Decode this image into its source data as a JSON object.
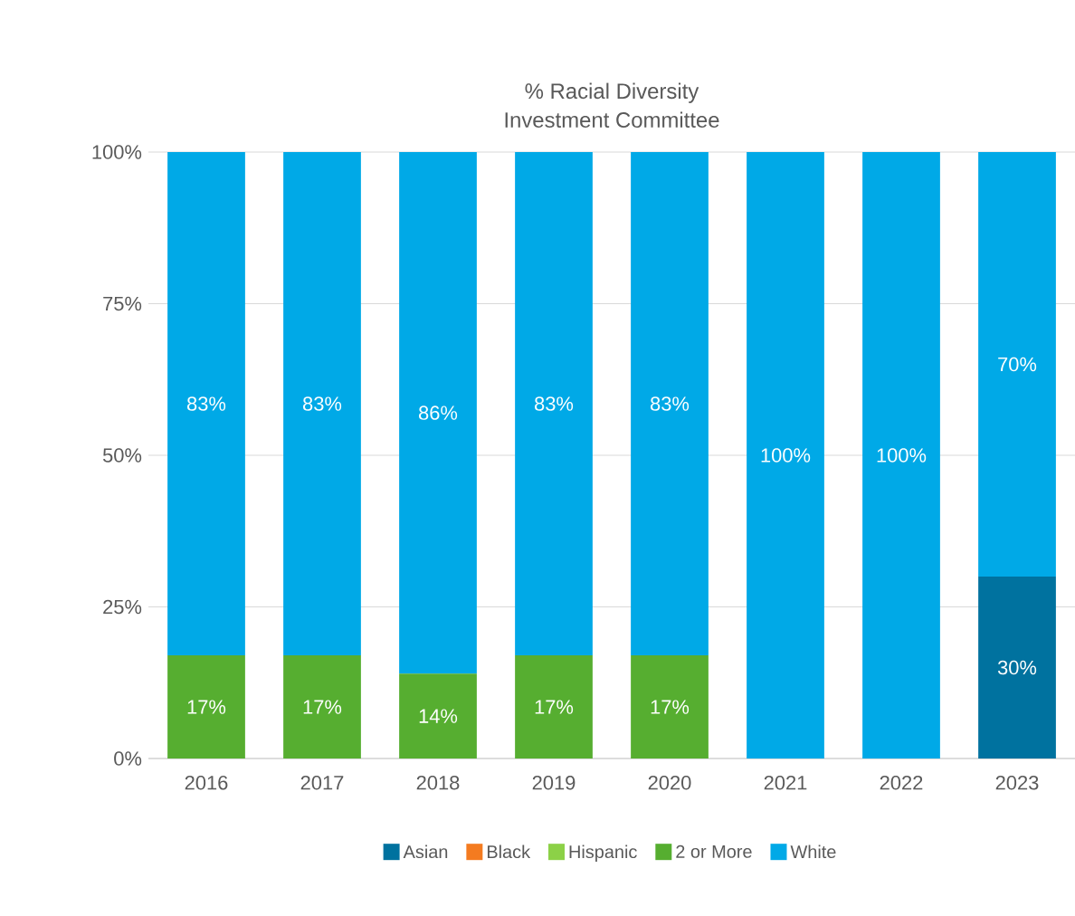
{
  "chart_data": {
    "type": "bar",
    "title": "% Racial Diversity",
    "subtitle": "Investment Committee",
    "stacked": true,
    "grid": "y",
    "legend": "bottom",
    "categories": [
      "2016",
      "2017",
      "2018",
      "2019",
      "2020",
      "2021",
      "2022",
      "2023"
    ],
    "ylim": [
      0,
      100
    ],
    "yticks": [
      {
        "value": 0,
        "label": "0%"
      },
      {
        "value": 25,
        "label": "25%"
      },
      {
        "value": 50,
        "label": "50%"
      },
      {
        "value": 75,
        "label": "75%"
      },
      {
        "value": 100,
        "label": "100%"
      }
    ],
    "series": [
      {
        "name": "Asian",
        "color": "#00729f",
        "values": [
          0,
          0,
          0,
          0,
          0,
          0,
          0,
          30
        ],
        "value_labels": [
          null,
          null,
          null,
          null,
          null,
          null,
          null,
          "30%"
        ]
      },
      {
        "name": "Black",
        "color": "#f47b20",
        "values": [
          0,
          0,
          0,
          0,
          0,
          0,
          0,
          0
        ],
        "value_labels": [
          null,
          null,
          null,
          null,
          null,
          null,
          null,
          null
        ]
      },
      {
        "name": "Hispanic",
        "color": "#8cd147",
        "values": [
          0,
          0,
          0,
          0,
          0,
          0,
          0,
          0
        ],
        "value_labels": [
          null,
          null,
          null,
          null,
          null,
          null,
          null,
          null
        ]
      },
      {
        "name": "2 or More",
        "color": "#56ae30",
        "values": [
          17,
          17,
          14,
          17,
          17,
          0,
          0,
          0
        ],
        "value_labels": [
          "17%",
          "17%",
          "14%",
          "17%",
          "17%",
          null,
          null,
          null
        ]
      },
      {
        "name": "White",
        "color": "#00a9e7",
        "values": [
          83,
          83,
          86,
          83,
          83,
          100,
          100,
          70
        ],
        "value_labels": [
          "83%",
          "83%",
          "86%",
          "83%",
          "83%",
          "100%",
          "100%",
          "70%"
        ]
      }
    ]
  }
}
